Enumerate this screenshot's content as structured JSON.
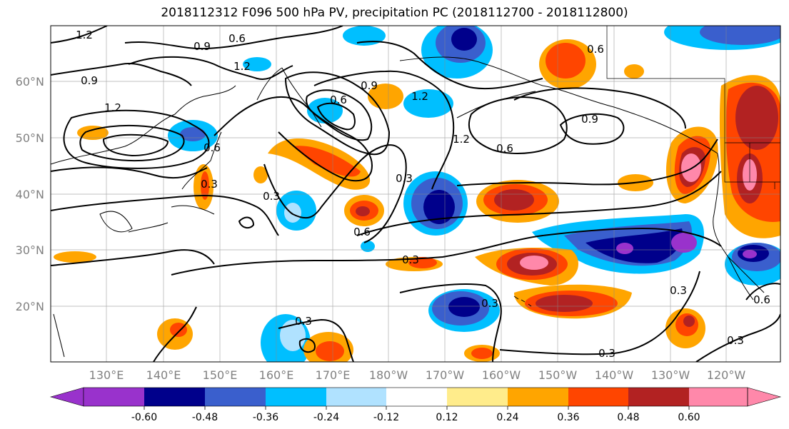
{
  "title": "2018112312 F096 500 hPa PV, precipitation PC (2018112700 - 2018112800)",
  "lat_labels": [
    "60°N",
    "50°N",
    "40°N",
    "30°N",
    "20°N"
  ],
  "lon_labels": [
    "130°E",
    "140°E",
    "150°E",
    "160°E",
    "170°E",
    "180°W",
    "170°W",
    "160°W",
    "150°W",
    "140°W",
    "130°W",
    "120°W"
  ],
  "colorbar": {
    "colors": [
      "#9932cc",
      "#00008b",
      "#3a5fcd",
      "#00bfff",
      "#b0e2ff",
      "#ffffff",
      "#ffec8b",
      "#ffa500",
      "#ff4500",
      "#b22222",
      "#ff88aa"
    ],
    "tick_labels": [
      "-0.60",
      "-0.48",
      "-0.36",
      "-0.24",
      "-0.12",
      "0.12",
      "0.24",
      "0.36",
      "0.48",
      "0.60"
    ]
  },
  "contour_labels": [
    "1.2",
    "0.6",
    "0.9",
    "0.9",
    "1.2",
    "0.6",
    "0.9",
    "1.2",
    "0.9",
    "0.6",
    "0.6",
    "1.2",
    "1.2",
    "0.3",
    "0.3",
    "0.6",
    "0.3",
    "0.3",
    "0.3",
    "0.3",
    "0.3",
    "0.3",
    "0.6",
    "0.3",
    "0.6"
  ]
}
